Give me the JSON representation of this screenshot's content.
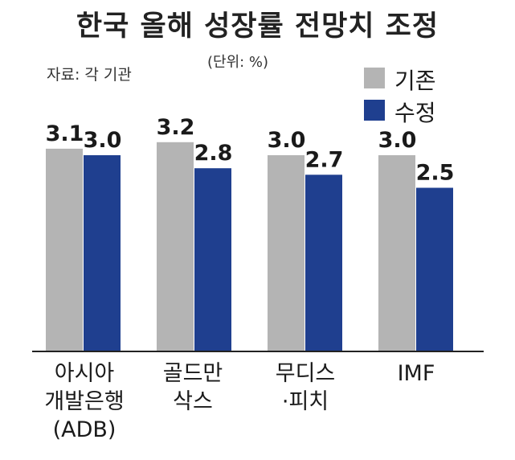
{
  "colors": {
    "original": "#b4b4b4",
    "revised": "#1f3f8f",
    "axis": "#222222"
  },
  "chart_data": {
    "type": "bar",
    "title": "한국 올해 성장률 전망치 조정",
    "source": "자료: 각 기관",
    "unit": "(단위: %)",
    "categories": [
      [
        "아시아",
        "개발은행",
        "(ADB)"
      ],
      [
        "골드만",
        "삭스"
      ],
      [
        "무디스",
        "·피치"
      ],
      [
        "IMF"
      ]
    ],
    "series": [
      {
        "name": "기존",
        "values": [
          3.1,
          3.2,
          3.0,
          3.0
        ],
        "labels": [
          "3.1",
          "3.2",
          "3.0",
          "3.0"
        ]
      },
      {
        "name": "수정",
        "values": [
          3.0,
          2.8,
          2.7,
          2.5
        ],
        "labels": [
          "3.0",
          "2.8",
          "2.7",
          "2.5"
        ]
      }
    ],
    "legend": "top-right",
    "grid": false
  }
}
